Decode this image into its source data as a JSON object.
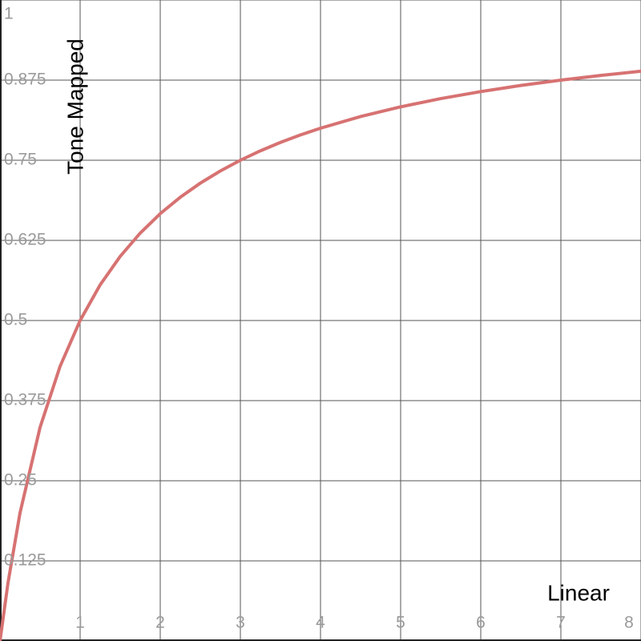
{
  "chart_data": {
    "type": "line",
    "x_label": "Linear",
    "y_label": "Tone Mapped",
    "x": [
      0,
      0.1,
      0.25,
      0.5,
      0.75,
      1,
      1.25,
      1.5,
      1.75,
      2,
      2.25,
      2.5,
      2.75,
      3,
      3.25,
      3.5,
      3.75,
      4,
      4.5,
      5,
      5.5,
      6,
      6.5,
      7,
      7.5,
      8
    ],
    "series": [
      {
        "color": "#d77272",
        "values": [
          0,
          0.0909,
          0.2,
          0.3333,
          0.4286,
          0.5,
          0.5556,
          0.6,
          0.6364,
          0.6667,
          0.6923,
          0.7143,
          0.7333,
          0.75,
          0.7647,
          0.7778,
          0.7895,
          0.8,
          0.8182,
          0.8333,
          0.8462,
          0.8571,
          0.8667,
          0.875,
          0.8824,
          0.8889
        ]
      }
    ],
    "xlim": [
      0,
      8
    ],
    "ylim": [
      0,
      1
    ],
    "xticks": [
      1,
      2,
      3,
      4,
      5,
      6,
      7,
      8
    ],
    "yticks": [
      0.125,
      0.25,
      0.375,
      0.5,
      0.625,
      0.75,
      0.875,
      1
    ],
    "grid": true
  }
}
